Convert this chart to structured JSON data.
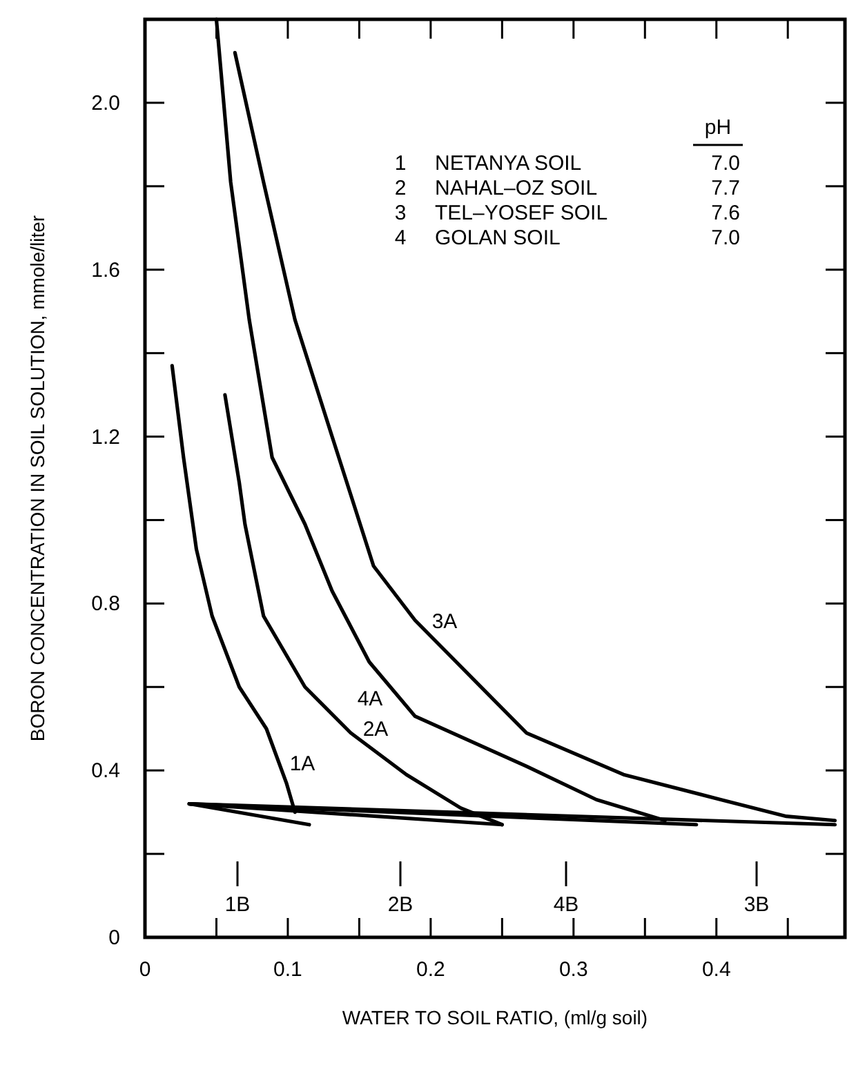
{
  "chart_data": {
    "type": "line",
    "xlabel": "WATER TO SOIL RATIO, (ml/g soil)",
    "ylabel": "BORON CONCENTRATION IN SOIL SOLUTION, mmole/liter",
    "xlim": [
      0,
      0.49
    ],
    "ylim": [
      0,
      2.2
    ],
    "xticks": [
      0,
      {
        "value": 0.05,
        "label": null
      },
      0.1,
      {
        "value": 0.15,
        "label": null
      },
      0.2,
      {
        "value": 0.25,
        "label": null
      },
      0.3,
      {
        "value": 0.35,
        "label": null
      },
      0.4,
      {
        "value": 0.45,
        "label": null
      }
    ],
    "yticks": [
      0,
      {
        "value": 0.2,
        "label": null
      },
      0.4,
      {
        "value": 0.6,
        "label": null
      },
      0.8,
      {
        "value": 1.0,
        "label": null
      },
      1.2,
      {
        "value": 1.4,
        "label": null
      },
      1.6,
      {
        "value": 1.8,
        "label": null
      },
      {
        "value": 2,
        "label": "2.0"
      },
      {
        "value": 2.2,
        "label": null
      }
    ],
    "grid": false,
    "legend": "bottom",
    "marker": "none",
    "line_style": "solid",
    "series": [
      {
        "name": "1A",
        "color": "#000000",
        "x": [
          0.019,
          0.027,
          0.036,
          0.047,
          0.066,
          0.085,
          0.099,
          0.105
        ],
        "values": [
          1.37,
          1.15,
          0.93,
          0.77,
          0.6,
          0.5,
          0.37,
          0.3
        ]
      },
      {
        "name": "2A",
        "color": "#000000",
        "x": [
          0.056,
          0.066,
          0.07,
          0.083,
          0.112,
          0.144,
          0.183,
          0.221,
          0.25
        ],
        "values": [
          1.3,
          1.09,
          0.99,
          0.77,
          0.6,
          0.49,
          0.39,
          0.31,
          0.27
        ]
      },
      {
        "name": "4A",
        "color": "#000000",
        "x": [
          0.05,
          0.06,
          0.073,
          0.089,
          0.112,
          0.131,
          0.157,
          0.189,
          0.267,
          0.316,
          0.364
        ],
        "values": [
          2.2,
          1.81,
          1.48,
          1.15,
          0.99,
          0.83,
          0.66,
          0.53,
          0.41,
          0.33,
          0.28
        ]
      },
      {
        "name": "3A",
        "color": "#000000",
        "x": [
          0.063,
          0.083,
          0.105,
          0.131,
          0.16,
          0.189,
          0.267,
          0.335,
          0.403,
          0.449,
          0.483
        ],
        "values": [
          2.12,
          1.81,
          1.48,
          1.2,
          0.89,
          0.76,
          0.49,
          0.39,
          0.33,
          0.29,
          0.28
        ]
      },
      {
        "name": "1B",
        "color": "#000000",
        "x": [
          0.031,
          0.115
        ],
        "values": [
          0.32,
          0.27
        ]
      },
      {
        "name": "2B",
        "color": "#000000",
        "x": [
          0.031,
          0.25
        ],
        "values": [
          0.32,
          0.27
        ]
      },
      {
        "name": "4B",
        "color": "#000000",
        "x": [
          0.031,
          0.386
        ],
        "values": [
          0.32,
          0.27
        ]
      },
      {
        "name": "3B",
        "color": "#000000",
        "x": [
          0.031,
          0.483
        ],
        "values": [
          0.32,
          0.27
        ]
      }
    ],
    "annotations": [
      "pH",
      "1",
      "NETANYA SOIL",
      "7.0",
      "2",
      "NAHAL–OZ SOIL",
      "7.7",
      "3",
      "TEL–YOSEF SOIL",
      "7.6",
      "4",
      "GOLAN SOIL",
      "7.0"
    ]
  }
}
